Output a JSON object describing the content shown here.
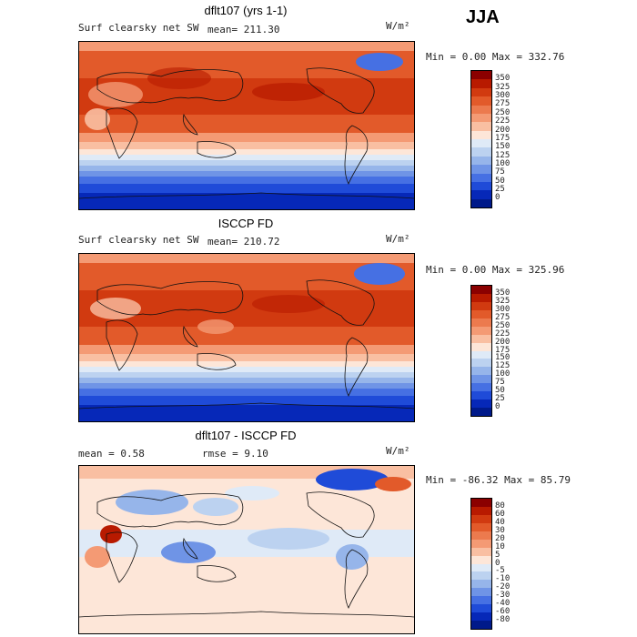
{
  "season": "JJA",
  "panels": [
    {
      "title": "dflt107 (yrs 1-1)",
      "field": "Surf clearsky net SW",
      "stat": "mean= 211.30",
      "units": "W/m²",
      "range": "Min =    0.00 Max = 332.76",
      "colorbar": {
        "levels": [
          "350",
          "325",
          "300",
          "275",
          "250",
          "225",
          "200",
          "175",
          "150",
          "125",
          "100",
          "75",
          "50",
          "25",
          "0"
        ],
        "colors": [
          "#8b0000",
          "#b81a00",
          "#d13a10",
          "#e25a2a",
          "#ec7a4e",
          "#f49a74",
          "#f9bfa2",
          "#fde6d8",
          "#dfeaf7",
          "#bcd2f0",
          "#96b5ea",
          "#6f94e6",
          "#4670e3",
          "#1f4bd8",
          "#0628b8",
          "#001a8a"
        ]
      }
    },
    {
      "title": "ISCCP FD",
      "field": "Surf clearsky net SW",
      "stat": "mean= 210.72",
      "units": "W/m²",
      "range": "Min =    0.00 Max = 325.96",
      "colorbar": {
        "levels": [
          "350",
          "325",
          "300",
          "275",
          "250",
          "225",
          "200",
          "175",
          "150",
          "125",
          "100",
          "75",
          "50",
          "25",
          "0"
        ],
        "colors": [
          "#8b0000",
          "#b81a00",
          "#d13a10",
          "#e25a2a",
          "#ec7a4e",
          "#f49a74",
          "#f9bfa2",
          "#fde6d8",
          "#dfeaf7",
          "#bcd2f0",
          "#96b5ea",
          "#6f94e6",
          "#4670e3",
          "#1f4bd8",
          "#0628b8",
          "#001a8a"
        ]
      }
    },
    {
      "title": "dflt107 - ISCCP FD",
      "stat_mean": "mean =    0.58",
      "stat_rmse": "rmse =    9.10",
      "units": "W/m²",
      "range": "Min = -86.32 Max =  85.79",
      "colorbar": {
        "levels": [
          "80",
          "60",
          "40",
          "30",
          "20",
          "10",
          "5",
          "0",
          "-5",
          "-10",
          "-20",
          "-30",
          "-40",
          "-60",
          "-80"
        ],
        "colors": [
          "#8b0000",
          "#b81a00",
          "#d13a10",
          "#e25a2a",
          "#ec7a4e",
          "#f49a74",
          "#f9bfa2",
          "#fde6d8",
          "#dfeaf7",
          "#bcd2f0",
          "#96b5ea",
          "#6f94e6",
          "#4670e3",
          "#1f4bd8",
          "#0628b8",
          "#001a8a"
        ]
      }
    }
  ]
}
